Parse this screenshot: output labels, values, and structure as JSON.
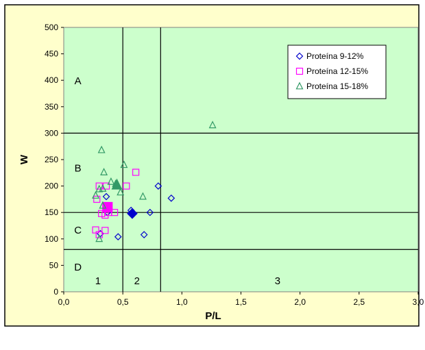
{
  "chart_data": {
    "type": "scatter",
    "title": "",
    "xlabel": "P/L",
    "ylabel": "W",
    "xlim": [
      0,
      3
    ],
    "ylim": [
      0,
      500
    ],
    "x_ticks": [
      "0,0",
      "0,5",
      "1,0",
      "1,5",
      "2,0",
      "2,5",
      "3,0"
    ],
    "y_ticks": [
      "0",
      "50",
      "100",
      "150",
      "200",
      "250",
      "300",
      "350",
      "400",
      "450",
      "500"
    ],
    "grid": false,
    "legend_position": "top-right",
    "plot_background": "#ccffcc",
    "chart_background": "#ffffcc",
    "reference_lines": {
      "vertical_x": [
        0.5,
        0.82
      ],
      "horizontal_y": [
        80,
        150,
        300
      ]
    },
    "zone_labels": {
      "rows": [
        {
          "label": "A",
          "x": 0.12,
          "y": 400
        },
        {
          "label": "B",
          "x": 0.12,
          "y": 235
        },
        {
          "label": "C",
          "x": 0.12,
          "y": 118
        },
        {
          "label": "D",
          "x": 0.12,
          "y": 48
        }
      ],
      "columns": [
        {
          "label": "1",
          "x": 0.29,
          "y": 22
        },
        {
          "label": "2",
          "x": 0.62,
          "y": 22
        },
        {
          "label": "3",
          "x": 1.81,
          "y": 22
        }
      ]
    },
    "series": [
      {
        "name": "Proteína 9-12%",
        "marker": "diamond",
        "color": "#0000cc",
        "points": [
          [
            0.36,
            180
          ],
          [
            0.8,
            200
          ],
          [
            0.91,
            177
          ],
          [
            0.57,
            154
          ],
          [
            0.73,
            150
          ],
          [
            0.58,
            148
          ],
          [
            0.37,
            150
          ],
          [
            0.46,
            104
          ],
          [
            0.68,
            108
          ],
          [
            0.31,
            110
          ]
        ],
        "highlight": [
          0.58,
          148
        ]
      },
      {
        "name": "Proteína 12-15%",
        "marker": "square",
        "color": "#ff00ff",
        "points": [
          [
            0.3,
            200
          ],
          [
            0.36,
            200
          ],
          [
            0.53,
            200
          ],
          [
            0.61,
            226
          ],
          [
            0.28,
            175
          ],
          [
            0.32,
            148
          ],
          [
            0.35,
            145
          ],
          [
            0.38,
            150
          ],
          [
            0.43,
            150
          ],
          [
            0.27,
            117
          ],
          [
            0.35,
            116
          ],
          [
            0.3,
            108
          ],
          [
            0.37,
            160
          ]
        ],
        "highlight": [
          0.37,
          160
        ]
      },
      {
        "name": "Proteína 15-18%",
        "marker": "triangle",
        "color": "#339966",
        "points": [
          [
            1.26,
            315
          ],
          [
            0.32,
            268
          ],
          [
            0.51,
            240
          ],
          [
            0.34,
            226
          ],
          [
            0.4,
            208
          ],
          [
            0.44,
            204
          ],
          [
            0.46,
            200
          ],
          [
            0.48,
            188
          ],
          [
            0.3,
            194
          ],
          [
            0.33,
            195
          ],
          [
            0.67,
            180
          ],
          [
            0.27,
            182
          ],
          [
            0.33,
            163
          ],
          [
            0.3,
            100
          ],
          [
            0.45,
            202
          ]
        ],
        "highlight": [
          0.45,
          202
        ]
      }
    ]
  }
}
